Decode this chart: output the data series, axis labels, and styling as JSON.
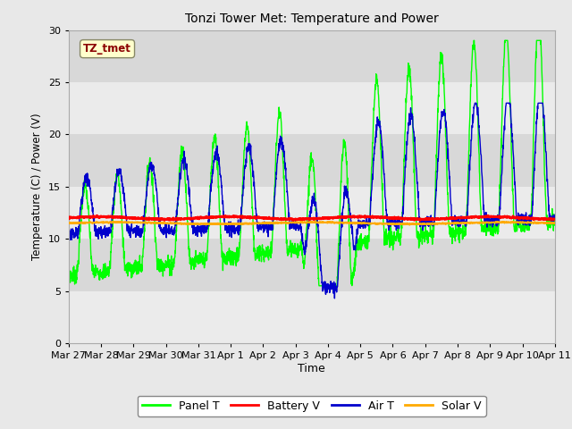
{
  "title": "Tonzi Tower Met: Temperature and Power",
  "xlabel": "Time",
  "ylabel": "Temperature (C) / Power (V)",
  "ylim": [
    0,
    30
  ],
  "yticks": [
    0,
    5,
    10,
    15,
    20,
    25,
    30
  ],
  "x_tick_labels": [
    "Mar 27",
    "Mar 28",
    "Mar 29",
    "Mar 30",
    "Mar 31",
    "Apr 1",
    "Apr 2",
    "Apr 3",
    "Apr 4",
    "Apr 5",
    "Apr 6",
    "Apr 7",
    "Apr 8",
    "Apr 9",
    "Apr 10",
    "Apr 11"
  ],
  "annotation_text": "TZ_tmet",
  "fig_bg_color": "#e8e8e8",
  "plot_bg_color": "#e0e0e0",
  "band_light": "#ebebeb",
  "band_dark": "#d8d8d8",
  "panel_color": "#00ff00",
  "battery_color": "#ff0000",
  "air_color": "#0000cc",
  "solar_color": "#ffaa00",
  "legend_labels": [
    "Panel T",
    "Battery V",
    "Air T",
    "Solar V"
  ]
}
